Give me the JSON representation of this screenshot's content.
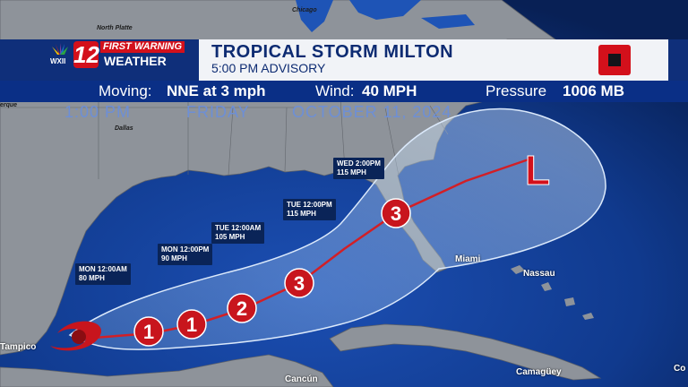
{
  "station": {
    "logo_number": "12",
    "logo_callsign": "WXII",
    "brand_top": "FIRST WARNING",
    "brand_bottom": "WEATHER"
  },
  "header": {
    "title": "TROPICAL STORM MILTON",
    "subtitle": "5:00 PM ADVISORY"
  },
  "stats": {
    "moving_label": "Moving:",
    "moving_value": "NNE at 3 mph",
    "wind_label": "Wind:",
    "wind_value": "40 MPH",
    "pressure_label": "Pressure",
    "pressure_value": "1006 MB"
  },
  "timestamp": {
    "time": "1:00 PM",
    "day": "FRIDAY",
    "date": "OCTOBER 11, 2024"
  },
  "forecast_points": [
    {
      "time": "MON 12:00AM",
      "wind": "80 MPH",
      "category": "1"
    },
    {
      "time": "MON 12:00PM",
      "wind": "90 MPH",
      "category": "1"
    },
    {
      "time": "TUE 12:00AM",
      "wind": "105 MPH",
      "category": "2"
    },
    {
      "time": "TUE 12:00PM",
      "wind": "115 MPH",
      "category": "3"
    },
    {
      "time": "WED 2:00PM",
      "wind": "115 MPH",
      "category": "3"
    }
  ],
  "remnant_low_label": "L",
  "cities": {
    "chicago": "Chicago",
    "north_platte": "North Platte",
    "dallas": "Dallas",
    "albuquerque": "erque",
    "miami": "Miami",
    "nassau": "Nassau",
    "tampico": "Tampico",
    "cancun": "Cancún",
    "camaguey": "Camagüey",
    "cockburn": "Co"
  },
  "colors": {
    "ocean": "#0b2a66",
    "land": "#8e939a",
    "track": "#d21f26",
    "cone": "#bcd6f0",
    "header_blue": "#0a2f86"
  }
}
